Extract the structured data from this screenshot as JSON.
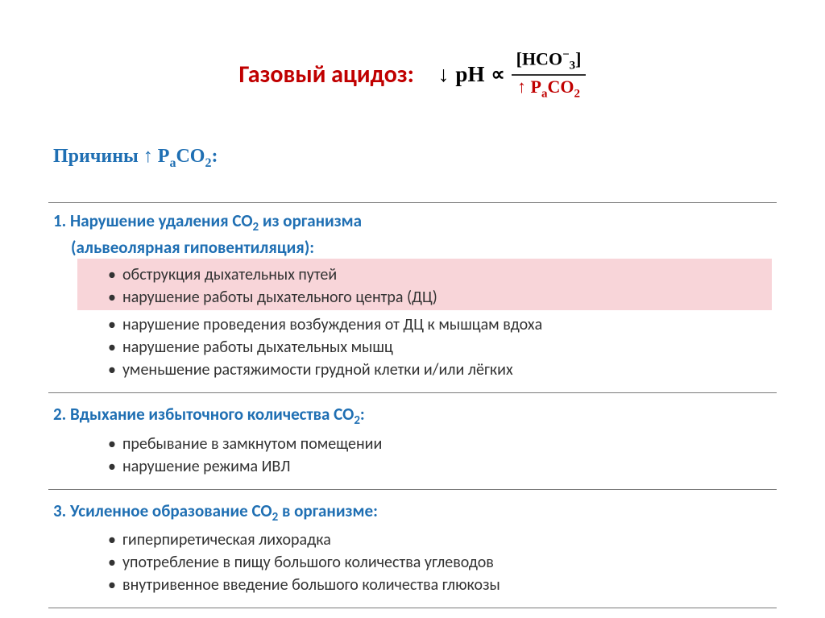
{
  "colors": {
    "title": "#c00000",
    "section_header": "#1f6fb3",
    "text": "#333333",
    "highlight_bg": "#f8d5d9",
    "rule": "#7a7a7a",
    "background": "#ffffff"
  },
  "typography": {
    "title_size_pt": 30,
    "subtitle_size_pt": 24,
    "section_head_size_pt": 21,
    "body_size_pt": 20,
    "title_weight": "bold",
    "body_font": "Calibri",
    "math_font": "Cambria Math"
  },
  "title": {
    "label": "Газовый ацидоз:",
    "formula": {
      "prefix_arrow": "↓",
      "lhs": "pH",
      "relation": "∝",
      "numerator": "[HCO₃⁻]",
      "denominator_prefix": "↑",
      "denominator": "PₐCO₂",
      "denominator_color": "#c00000"
    }
  },
  "subtitle": {
    "prefix": "Причины ↑ ",
    "variable": "PₐCO₂",
    "suffix": ":"
  },
  "sections": [
    {
      "heading_line1": "1. Нарушение удаления CO₂ из организма",
      "heading_line2": "(альвеолярная гиповентиляция):",
      "highlight_first_n": 2,
      "items": [
        "обструкция дыхательных путей",
        "нарушение работы дыхательного центра (ДЦ)",
        "нарушение проведения возбуждения от ДЦ к мышцам вдоха",
        "нарушение работы дыхательных мышц",
        "уменьшение растяжимости грудной клетки и/или лёгких"
      ]
    },
    {
      "heading_line1": "2. Вдыхание избыточного количества CO₂:",
      "items": [
        "пребывание в замкнутом помещении",
        "нарушение режима ИВЛ"
      ]
    },
    {
      "heading_line1": "3. Усиленное образование CO₂ в организме:",
      "items": [
        "гиперпиретическая лихорадка",
        "употребление в пищу большого количества углеводов",
        "внутривенное введение большого количества глюкозы"
      ]
    }
  ]
}
